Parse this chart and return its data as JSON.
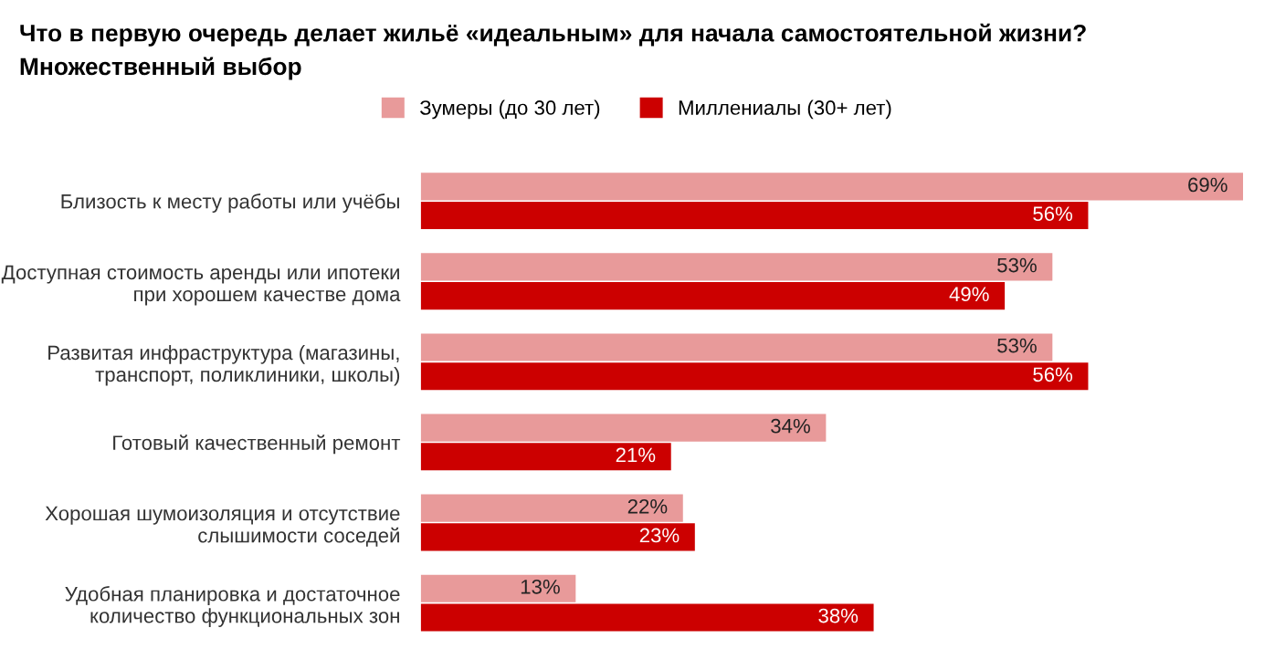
{
  "chart_data": {
    "type": "bar",
    "orientation": "horizontal",
    "title": "Что в первую очередь делает жильё «идеальным» для начала самостоятельной жизни?",
    "subtitle": "Множественный выбор",
    "categories": [
      "Близость к месту работы или учёбы",
      "Доступная стоимость аренды или ипотеки\nпри хорошем качестве дома",
      "Развитая инфраструктура (магазины,\nтранспорт, поликлиники, школы)",
      "Готовый качественный ремонт",
      "Хорошая шумоизоляция и отсутствие\nслышимости соседей",
      "Удобная планировка и достаточное\nколичество функциональных зон"
    ],
    "series": [
      {
        "name": "Зумеры (до 30 лет)",
        "color": "#e89a9a",
        "values": [
          69,
          53,
          53,
          34,
          22,
          13
        ],
        "value_labels": [
          "69%",
          "53%",
          "53%",
          "34%",
          "22%",
          "13%"
        ]
      },
      {
        "name": "Миллениалы (30+ лет)",
        "color": "#cc0000",
        "values": [
          56,
          49,
          56,
          21,
          23,
          38
        ],
        "value_labels": [
          "56%",
          "49%",
          "56%",
          "21%",
          "23%",
          "38%"
        ]
      }
    ],
    "legend": "top",
    "grid": false
  }
}
